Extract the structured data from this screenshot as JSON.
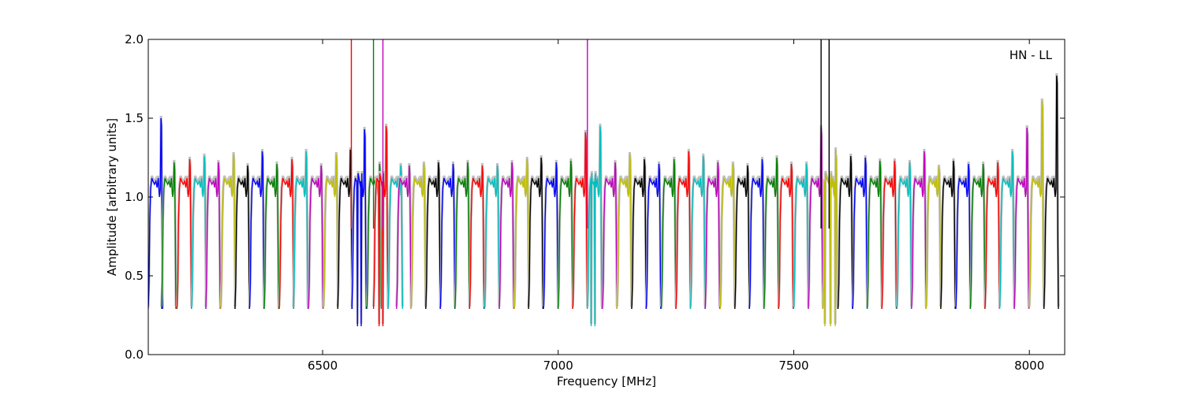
{
  "chart_data": {
    "type": "line",
    "title": "",
    "annotation": "HN - LL",
    "xlabel": "Frequency [MHz]",
    "ylabel": "Amplitude [arbitrary units]",
    "xlim": [
      6130,
      8075
    ],
    "ylim": [
      0.0,
      2.0
    ],
    "xticks": [
      6500,
      7000,
      7500,
      8000
    ],
    "yticks": [
      0.0,
      0.5,
      1.0,
      1.5,
      2.0
    ],
    "xtick_labels": [
      "6500",
      "7000",
      "7500",
      "8000"
    ],
    "ytick_labels": [
      "0.0",
      "0.5",
      "1.0",
      "1.5",
      "2.0"
    ],
    "grid": false,
    "colors": [
      "#0000ff",
      "#008000",
      "#ff0000",
      "#00bfbf",
      "#bf00bf",
      "#bfbf00",
      "#000000"
    ],
    "background_color": "#c0c0c0",
    "channel_width_mhz": 31.25,
    "channels": [
      {
        "start": 6130,
        "peak": 1.5,
        "dips": []
      },
      {
        "start": 6158,
        "peak": 1.22,
        "dips": []
      },
      {
        "start": 6191,
        "peak": 1.24,
        "dips": []
      },
      {
        "start": 6222,
        "peak": 1.26,
        "dips": []
      },
      {
        "start": 6252,
        "peak": 1.22,
        "dips": []
      },
      {
        "start": 6284,
        "peak": 1.27,
        "dips": []
      },
      {
        "start": 6314,
        "peak": 1.2,
        "dips": []
      },
      {
        "start": 6345,
        "peak": 1.29,
        "dips": []
      },
      {
        "start": 6376,
        "peak": 1.21,
        "dips": []
      },
      {
        "start": 6408,
        "peak": 1.24,
        "dips": []
      },
      {
        "start": 6438,
        "peak": 1.29,
        "dips": []
      },
      {
        "start": 6470,
        "peak": 1.2,
        "dips": []
      },
      {
        "start": 6502,
        "peak": 1.27,
        "dips": []
      },
      {
        "start": 6532,
        "peak": 1.3,
        "dips": []
      },
      {
        "start": 6562,
        "peak": 1.43,
        "dips": [
          6574,
          6582
        ]
      },
      {
        "start": 6594,
        "peak": 1.21,
        "dips": []
      },
      {
        "start": 6608,
        "peak": 1.45,
        "dips": [
          6620,
          6628
        ]
      },
      {
        "start": 6639,
        "peak": 1.2,
        "dips": []
      },
      {
        "start": 6657,
        "peak": 1.2,
        "dips": []
      },
      {
        "start": 6688,
        "peak": 1.21,
        "dips": []
      },
      {
        "start": 6719,
        "peak": 1.22,
        "dips": []
      },
      {
        "start": 6750,
        "peak": 1.21,
        "dips": []
      },
      {
        "start": 6781,
        "peak": 1.22,
        "dips": []
      },
      {
        "start": 6812,
        "peak": 1.2,
        "dips": []
      },
      {
        "start": 6844,
        "peak": 1.2,
        "dips": []
      },
      {
        "start": 6875,
        "peak": 1.22,
        "dips": []
      },
      {
        "start": 6907,
        "peak": 1.24,
        "dips": []
      },
      {
        "start": 6937,
        "peak": 1.25,
        "dips": []
      },
      {
        "start": 6969,
        "peak": 1.22,
        "dips": []
      },
      {
        "start": 7000,
        "peak": 1.23,
        "dips": []
      },
      {
        "start": 7031,
        "peak": 1.41,
        "dips": []
      },
      {
        "start": 7062,
        "peak": 1.45,
        "dips": [
          7070,
          7078
        ]
      },
      {
        "start": 7094,
        "peak": 1.22,
        "dips": []
      },
      {
        "start": 7125,
        "peak": 1.27,
        "dips": []
      },
      {
        "start": 7156,
        "peak": 1.24,
        "dips": []
      },
      {
        "start": 7187,
        "peak": 1.21,
        "dips": []
      },
      {
        "start": 7219,
        "peak": 1.24,
        "dips": []
      },
      {
        "start": 7250,
        "peak": 1.29,
        "dips": []
      },
      {
        "start": 7281,
        "peak": 1.26,
        "dips": []
      },
      {
        "start": 7312,
        "peak": 1.22,
        "dips": []
      },
      {
        "start": 7344,
        "peak": 1.21,
        "dips": []
      },
      {
        "start": 7375,
        "peak": 1.2,
        "dips": []
      },
      {
        "start": 7406,
        "peak": 1.24,
        "dips": []
      },
      {
        "start": 7437,
        "peak": 1.25,
        "dips": []
      },
      {
        "start": 7468,
        "peak": 1.21,
        "dips": []
      },
      {
        "start": 7500,
        "peak": 1.21,
        "dips": []
      },
      {
        "start": 7531,
        "peak": 1.44,
        "dips": []
      },
      {
        "start": 7562,
        "peak": 1.3,
        "dips": [
          7566,
          7578,
          7588
        ]
      },
      {
        "start": 7594,
        "peak": 1.26,
        "dips": []
      },
      {
        "start": 7625,
        "peak": 1.25,
        "dips": []
      },
      {
        "start": 7656,
        "peak": 1.23,
        "dips": []
      },
      {
        "start": 7687,
        "peak": 1.23,
        "dips": []
      },
      {
        "start": 7719,
        "peak": 1.22,
        "dips": []
      },
      {
        "start": 7750,
        "peak": 1.29,
        "dips": []
      },
      {
        "start": 7781,
        "peak": 1.19,
        "dips": []
      },
      {
        "start": 7812,
        "peak": 1.23,
        "dips": []
      },
      {
        "start": 7844,
        "peak": 1.21,
        "dips": []
      },
      {
        "start": 7875,
        "peak": 1.21,
        "dips": []
      },
      {
        "start": 7906,
        "peak": 1.22,
        "dips": []
      },
      {
        "start": 7937,
        "peak": 1.29,
        "dips": []
      },
      {
        "start": 7968,
        "peak": 1.44,
        "dips": []
      },
      {
        "start": 8000,
        "peak": 1.61,
        "dips": []
      },
      {
        "start": 8031,
        "peak": 1.77,
        "dips": []
      }
    ],
    "spikes": [
      {
        "x": 6561,
        "color": "#ff0000"
      },
      {
        "x": 6608,
        "color": "#008000"
      },
      {
        "x": 6628,
        "color": "#bf00bf"
      },
      {
        "x": 7062,
        "color": "#bf00bf"
      },
      {
        "x": 7558,
        "color": "#000000"
      },
      {
        "x": 7575,
        "color": "#000000"
      }
    ]
  }
}
